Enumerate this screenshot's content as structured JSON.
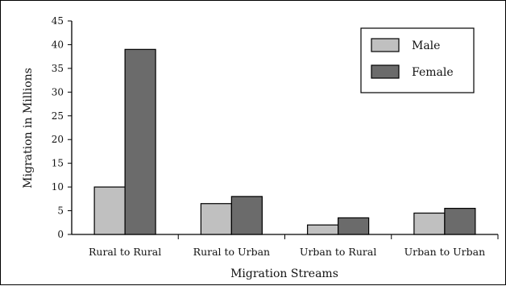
{
  "chart_data": {
    "type": "bar",
    "title": "",
    "xlabel": "Migration Streams",
    "ylabel": "Migration in Millions",
    "ylim": [
      0,
      45
    ],
    "yticks": [
      0,
      5,
      10,
      15,
      20,
      25,
      30,
      35,
      40,
      45
    ],
    "categories": [
      "Rural to Rural",
      "Rural to Urban",
      "Urban to Rural",
      "Urban to Urban"
    ],
    "series": [
      {
        "name": "Male",
        "values": [
          10,
          6.5,
          2,
          4.5
        ],
        "color": "#c0c0c0"
      },
      {
        "name": "Female",
        "values": [
          39,
          8,
          3.5,
          5.5
        ],
        "color": "#6b6b6b"
      }
    ],
    "legend_position": "top-right",
    "grid": false
  }
}
